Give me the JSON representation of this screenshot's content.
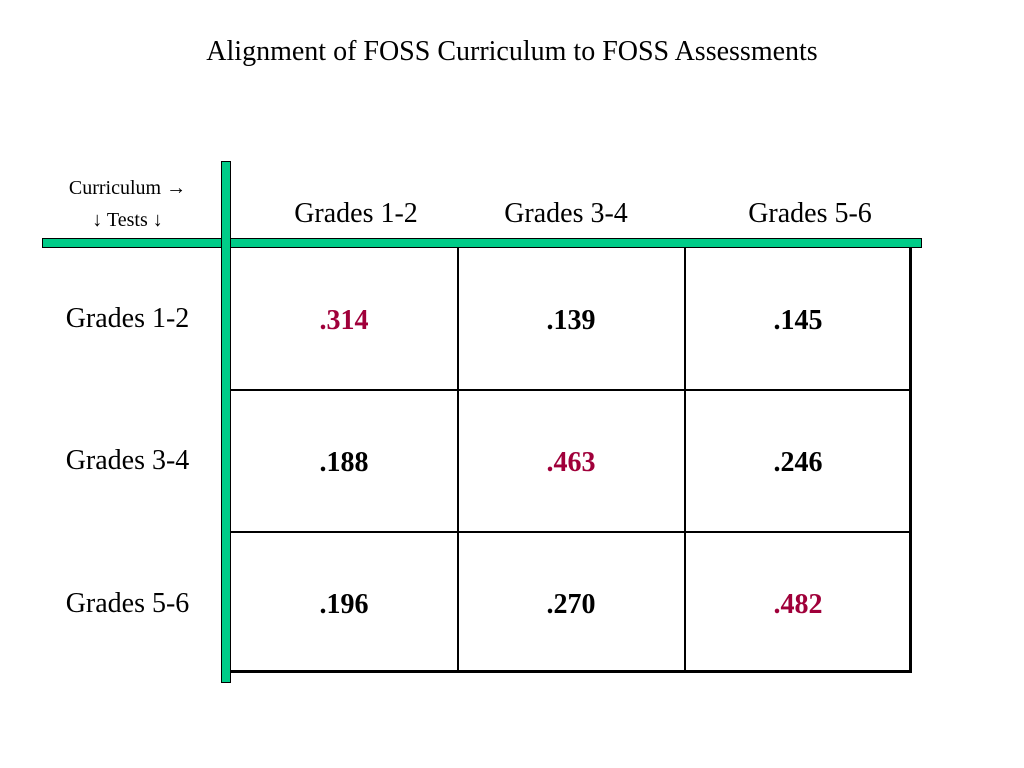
{
  "title": "Alignment of FOSS Curriculum to FOSS Assessments",
  "corner": {
    "line1": "Curriculum →",
    "line2": "↓ Tests ↓"
  },
  "columns": [
    "Grades 1-2",
    "Grades 3-4",
    "Grades 5-6"
  ],
  "rows": [
    {
      "label": "Grades 1-2",
      "values": [
        ".314",
        ".139",
        ".145"
      ]
    },
    {
      "label": "Grades 3-4",
      "values": [
        ".188",
        ".463",
        ".246"
      ]
    },
    {
      "label": "Grades 5-6",
      "values": [
        ".196",
        ".270",
        ".482"
      ]
    }
  ],
  "colors": {
    "highlight": "#a0003a",
    "normal": "#000000",
    "divider": "#00cc88"
  }
}
